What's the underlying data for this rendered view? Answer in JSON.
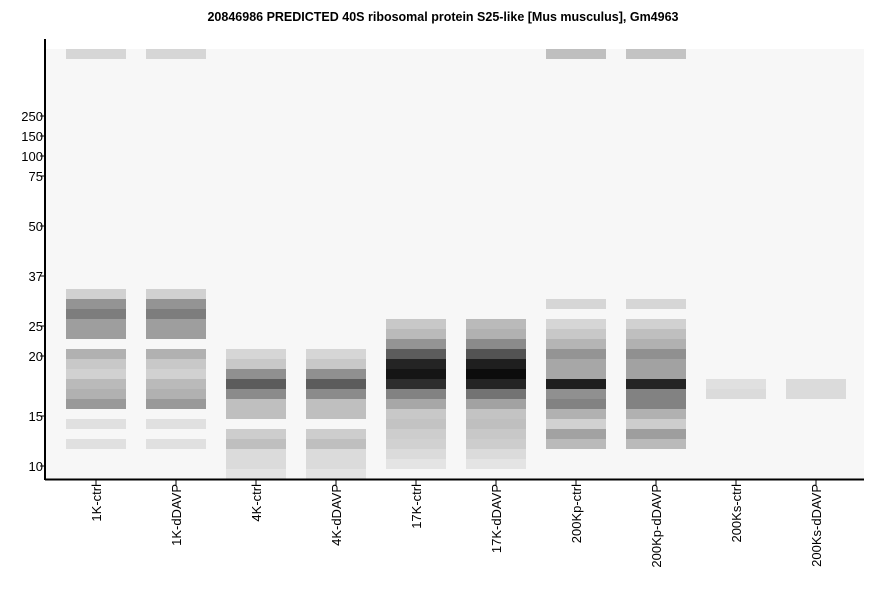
{
  "chart_data": {
    "type": "heatmap",
    "title": "20846986 PREDICTED  40S ribosomal protein S25-like [Mus musculus], Gm4963",
    "xlabel": "",
    "ylabel": "",
    "grid": false,
    "y_ticks": [
      "250",
      "150",
      "100",
      "75",
      "50",
      "37",
      "25",
      "20",
      "15",
      "10"
    ],
    "rows": 43,
    "well_row": 0,
    "lanes": [
      {
        "label": "1K-ctrl",
        "bands": [
          [
            0,
            0.14
          ],
          [
            24,
            0.16
          ],
          [
            25,
            0.42
          ],
          [
            26,
            0.52
          ],
          [
            27,
            0.38
          ],
          [
            28,
            0.38
          ],
          [
            30,
            0.3
          ],
          [
            31,
            0.2
          ],
          [
            32,
            0.16
          ],
          [
            33,
            0.26
          ],
          [
            34,
            0.3
          ],
          [
            35,
            0.4
          ],
          [
            37,
            0.1
          ],
          [
            39,
            0.1
          ]
        ]
      },
      {
        "label": "1K-dDAVP",
        "bands": [
          [
            0,
            0.14
          ],
          [
            24,
            0.16
          ],
          [
            25,
            0.42
          ],
          [
            26,
            0.52
          ],
          [
            27,
            0.38
          ],
          [
            28,
            0.38
          ],
          [
            30,
            0.3
          ],
          [
            31,
            0.2
          ],
          [
            32,
            0.16
          ],
          [
            33,
            0.26
          ],
          [
            34,
            0.3
          ],
          [
            35,
            0.4
          ],
          [
            37,
            0.1
          ],
          [
            39,
            0.1
          ]
        ]
      },
      {
        "label": "4K-ctrl",
        "bands": [
          [
            30,
            0.14
          ],
          [
            31,
            0.2
          ],
          [
            32,
            0.44
          ],
          [
            33,
            0.66
          ],
          [
            34,
            0.46
          ],
          [
            35,
            0.24
          ],
          [
            36,
            0.24
          ],
          [
            38,
            0.18
          ],
          [
            39,
            0.24
          ],
          [
            40,
            0.12
          ],
          [
            41,
            0.12
          ],
          [
            42,
            0.08
          ]
        ]
      },
      {
        "label": "4K-dDAVP",
        "bands": [
          [
            30,
            0.14
          ],
          [
            31,
            0.2
          ],
          [
            32,
            0.44
          ],
          [
            33,
            0.66
          ],
          [
            34,
            0.46
          ],
          [
            35,
            0.24
          ],
          [
            36,
            0.24
          ],
          [
            38,
            0.18
          ],
          [
            39,
            0.24
          ],
          [
            40,
            0.12
          ],
          [
            41,
            0.12
          ],
          [
            42,
            0.08
          ]
        ]
      },
      {
        "label": "17K-ctrl",
        "bands": [
          [
            27,
            0.2
          ],
          [
            28,
            0.26
          ],
          [
            29,
            0.42
          ],
          [
            30,
            0.66
          ],
          [
            31,
            0.9
          ],
          [
            32,
            0.96
          ],
          [
            33,
            0.86
          ],
          [
            34,
            0.5
          ],
          [
            35,
            0.34
          ],
          [
            36,
            0.2
          ],
          [
            37,
            0.22
          ],
          [
            38,
            0.18
          ],
          [
            39,
            0.16
          ],
          [
            40,
            0.12
          ],
          [
            41,
            0.08
          ]
        ]
      },
      {
        "label": "17K-dDAVP",
        "bands": [
          [
            27,
            0.26
          ],
          [
            28,
            0.3
          ],
          [
            29,
            0.46
          ],
          [
            30,
            0.7
          ],
          [
            31,
            0.92
          ],
          [
            32,
            1.0
          ],
          [
            33,
            0.9
          ],
          [
            34,
            0.56
          ],
          [
            35,
            0.36
          ],
          [
            36,
            0.22
          ],
          [
            37,
            0.24
          ],
          [
            38,
            0.2
          ],
          [
            39,
            0.18
          ],
          [
            40,
            0.12
          ],
          [
            41,
            0.08
          ]
        ]
      },
      {
        "label": "200Kp-ctrl",
        "bands": [
          [
            0,
            0.24
          ],
          [
            25,
            0.14
          ],
          [
            27,
            0.14
          ],
          [
            28,
            0.2
          ],
          [
            29,
            0.28
          ],
          [
            30,
            0.42
          ],
          [
            31,
            0.34
          ],
          [
            32,
            0.34
          ],
          [
            33,
            0.92
          ],
          [
            34,
            0.44
          ],
          [
            35,
            0.5
          ],
          [
            36,
            0.3
          ],
          [
            37,
            0.16
          ],
          [
            38,
            0.36
          ],
          [
            39,
            0.26
          ]
        ]
      },
      {
        "label": "200Kp-dDAVP",
        "bands": [
          [
            0,
            0.22
          ],
          [
            25,
            0.14
          ],
          [
            27,
            0.16
          ],
          [
            28,
            0.24
          ],
          [
            29,
            0.3
          ],
          [
            30,
            0.44
          ],
          [
            31,
            0.36
          ],
          [
            32,
            0.36
          ],
          [
            33,
            0.9
          ],
          [
            34,
            0.5
          ],
          [
            35,
            0.5
          ],
          [
            36,
            0.3
          ],
          [
            37,
            0.18
          ],
          [
            38,
            0.38
          ],
          [
            39,
            0.26
          ]
        ]
      },
      {
        "label": "200Ks-ctrl",
        "bands": [
          [
            33,
            0.1
          ],
          [
            34,
            0.12
          ]
        ]
      },
      {
        "label": "200Ks-dDAVP",
        "bands": [
          [
            33,
            0.12
          ],
          [
            34,
            0.12
          ]
        ]
      }
    ]
  }
}
